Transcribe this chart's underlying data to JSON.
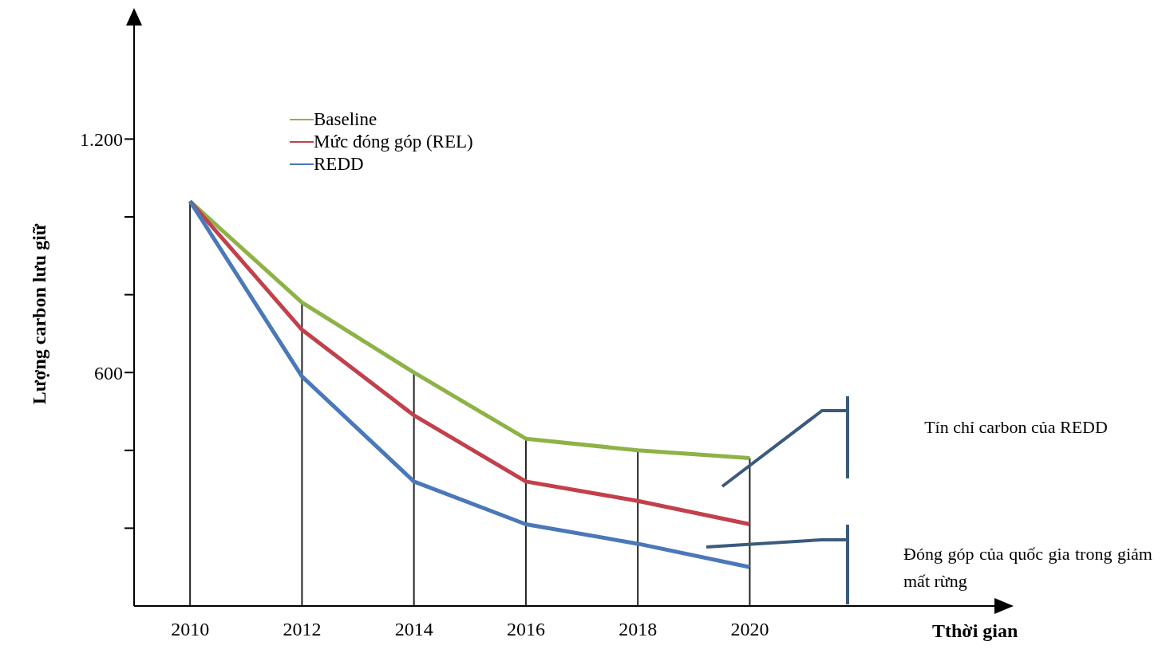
{
  "chart_data": {
    "type": "line",
    "ylabel": "Lượng carbon lưu giữ",
    "categories": [
      "2010",
      "2012",
      "2014",
      "2016",
      "2018",
      "2020"
    ],
    "series": [
      {
        "name": "Baseline",
        "color": "#8db347",
        "values": [
          1040,
          780,
          600,
          430,
          400,
          380
        ]
      },
      {
        "name": "Mức đóng góp (REL)",
        "color": "#c2404c",
        "values": [
          1040,
          710,
          490,
          320,
          270,
          210
        ]
      },
      {
        "name": "REDD",
        "color": "#4a78b8",
        "values": [
          1040,
          590,
          320,
          210,
          160,
          100
        ]
      }
    ],
    "ylim": [
      0,
      1500
    ],
    "yticks": [
      {
        "value": 200,
        "label": null
      },
      {
        "value": 400,
        "label": null
      },
      {
        "value": 600,
        "label": "600"
      },
      {
        "value": 800,
        "label": null
      },
      {
        "value": 1000,
        "label": null
      },
      {
        "value": 1200,
        "label": "1.200"
      }
    ],
    "grid": false,
    "ref_lines": [
      {
        "axis": "x",
        "value": "2010",
        "color": "#222222"
      },
      {
        "axis": "x",
        "value": "2012",
        "color": "#222222"
      },
      {
        "axis": "x",
        "value": "2014",
        "color": "#222222"
      },
      {
        "axis": "x",
        "value": "2016",
        "color": "#222222"
      },
      {
        "axis": "x",
        "value": "2018",
        "color": "#222222"
      },
      {
        "axis": "x",
        "value": "2020",
        "color": "#222222"
      }
    ],
    "legend": "top left",
    "marker": "none",
    "line_style": "solid",
    "annotations": [
      "Tín chỉ carbon của REDD",
      "Đóng góp của quốc gia trong giảm mất rừng",
      "Tthời gian"
    ]
  }
}
